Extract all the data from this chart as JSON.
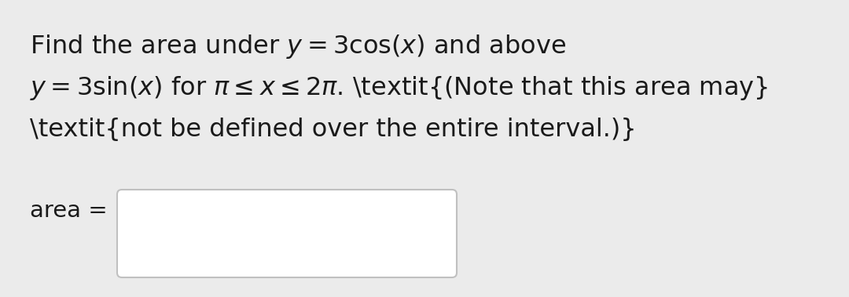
{
  "background_color": "#ebebeb",
  "text_color": "#1a1a1a",
  "font_size": 23,
  "label_font_size": 21,
  "box_edge_color": "#c0c0c0",
  "box_face_color": "#ffffff",
  "line1_normal": "Find the area under ",
  "line1_math": "$y = 3\\cos(x)$",
  "line1_end": " and above",
  "line2_math1": "$y = 3\\sin(x)$",
  "line2_mid": " for ",
  "line2_math2": "$\\pi \\leq x \\leq 2\\pi$",
  "line2_end": ". ",
  "line2_italic": "(Note that this area may",
  "line3_italic": "not be defined over the entire interval.)",
  "label": "area = "
}
